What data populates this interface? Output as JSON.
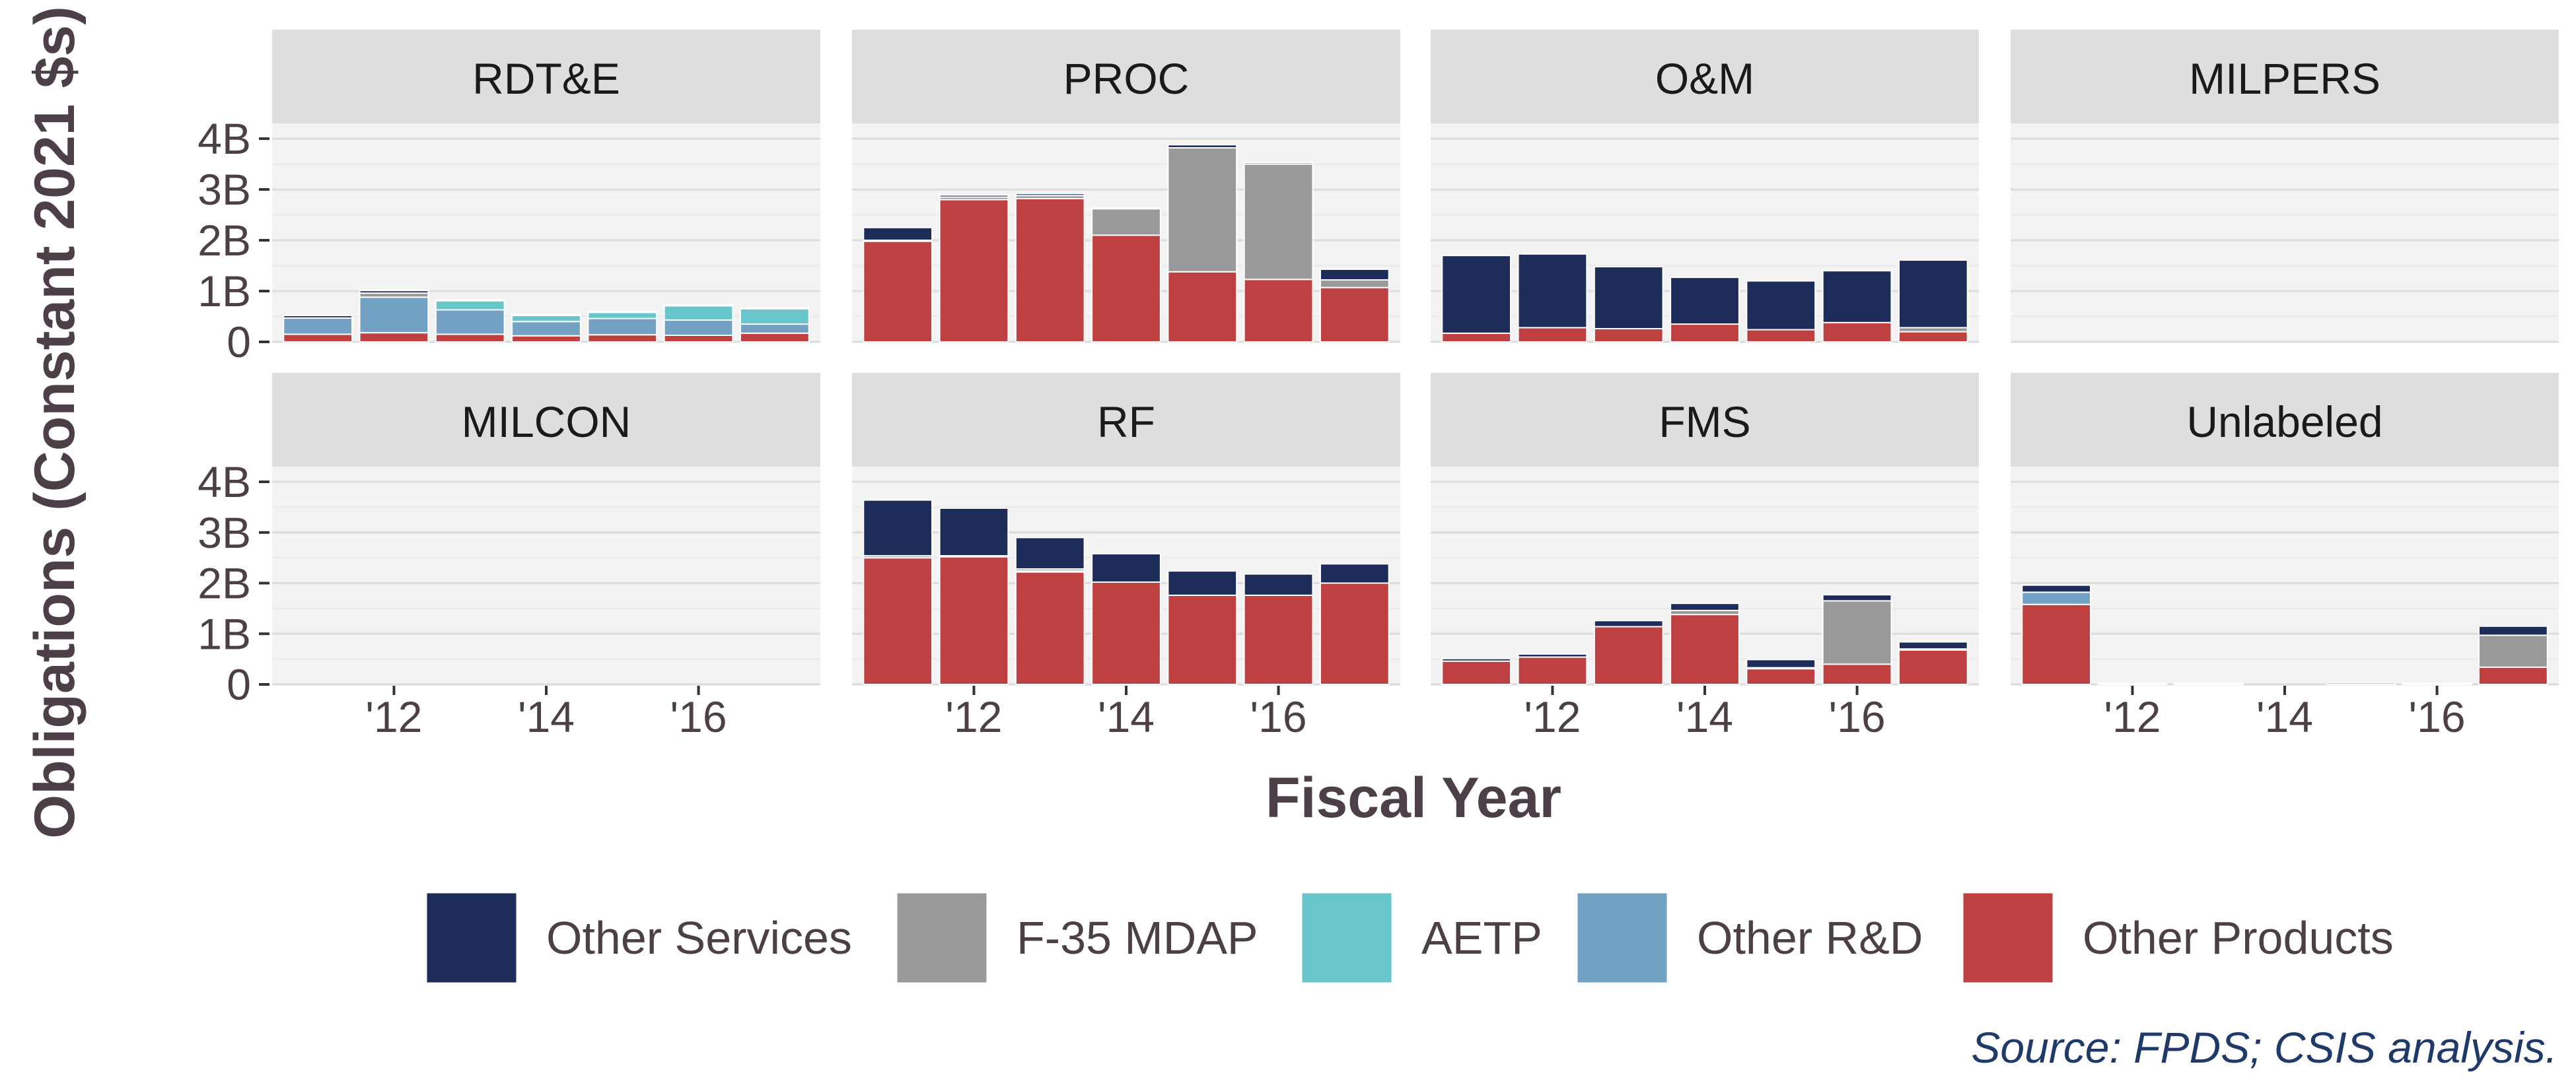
{
  "chart_data": {
    "type": "bar",
    "stacked": true,
    "faceted": true,
    "xlabel": "Fiscal Year",
    "ylabel": "Obligations (Constant 2021 $s)",
    "source": "Source: FPDS; CSIS analysis.",
    "years": [
      2011,
      2012,
      2013,
      2014,
      2015,
      2016,
      2017
    ],
    "xticks": [
      {
        "year": 2012,
        "label": "'12"
      },
      {
        "year": 2014,
        "label": "'14"
      },
      {
        "year": 2016,
        "label": "'16"
      }
    ],
    "yticks": [
      {
        "value": 0,
        "label": "0"
      },
      {
        "value": 1,
        "label": "1B"
      },
      {
        "value": 2,
        "label": "2B"
      },
      {
        "value": 3,
        "label": "3B"
      },
      {
        "value": 4,
        "label": "4B"
      }
    ],
    "ylim": [
      0,
      4.3
    ],
    "y_unit": "billions",
    "grid": true,
    "legend_position": "bottom",
    "series": [
      {
        "key": "other_products",
        "name": "Other Products",
        "color": "#bf4040"
      },
      {
        "key": "other_rd",
        "name": "Other R&D",
        "color": "#72a1c4"
      },
      {
        "key": "aetp",
        "name": "AETP",
        "color": "#66c6cc"
      },
      {
        "key": "f35",
        "name": "F-35 MDAP",
        "color": "#999999"
      },
      {
        "key": "other_services",
        "name": "Other Services",
        "color": "#1e2c5a"
      }
    ],
    "legend_order": [
      "other_services",
      "f35",
      "aetp",
      "other_rd",
      "other_products"
    ],
    "panels": [
      {
        "label": "RDT&E",
        "values": {
          "other_products": [
            0.15,
            0.18,
            0.15,
            0.12,
            0.14,
            0.13,
            0.17
          ],
          "other_rd": [
            0.32,
            0.7,
            0.48,
            0.28,
            0.32,
            0.3,
            0.18
          ],
          "aetp": [
            0.0,
            0.0,
            0.18,
            0.12,
            0.12,
            0.28,
            0.3
          ],
          "f35": [
            0.0,
            0.08,
            0.0,
            0.0,
            0.0,
            0.0,
            0.0
          ],
          "other_services": [
            0.05,
            0.05,
            0.02,
            0.02,
            0.02,
            0.02,
            0.02
          ]
        }
      },
      {
        "label": "PROC",
        "values": {
          "other_products": [
            1.98,
            2.8,
            2.82,
            2.1,
            1.38,
            1.23,
            1.07
          ],
          "other_rd": [
            0.0,
            0.0,
            0.0,
            0.0,
            0.0,
            0.0,
            0.0
          ],
          "aetp": [
            0.0,
            0.0,
            0.0,
            0.0,
            0.0,
            0.0,
            0.0
          ],
          "f35": [
            0.02,
            0.05,
            0.06,
            0.52,
            2.44,
            2.27,
            0.15
          ],
          "other_services": [
            0.25,
            0.04,
            0.04,
            0.02,
            0.06,
            0.03,
            0.21
          ]
        }
      },
      {
        "label": "O&M",
        "values": {
          "other_products": [
            0.17,
            0.28,
            0.26,
            0.35,
            0.24,
            0.38,
            0.2
          ],
          "other_rd": [
            0.0,
            0.0,
            0.0,
            0.0,
            0.0,
            0.0,
            0.0
          ],
          "aetp": [
            0.0,
            0.0,
            0.0,
            0.0,
            0.0,
            0.0,
            0.0
          ],
          "f35": [
            0.0,
            0.0,
            0.0,
            0.0,
            0.0,
            0.0,
            0.08
          ],
          "other_services": [
            1.53,
            1.45,
            1.22,
            0.92,
            0.96,
            1.02,
            1.33
          ]
        }
      },
      {
        "label": "MILPERS",
        "values": {
          "other_products": [
            0,
            0,
            0,
            0,
            0,
            0,
            0
          ],
          "other_rd": [
            0,
            0,
            0,
            0,
            0,
            0,
            0
          ],
          "aetp": [
            0,
            0,
            0,
            0,
            0,
            0,
            0
          ],
          "f35": [
            0,
            0,
            0,
            0,
            0,
            0,
            0
          ],
          "other_services": [
            0,
            0,
            0,
            0,
            0,
            0,
            0
          ]
        }
      },
      {
        "label": "MILCON",
        "values": {
          "other_products": [
            0,
            0,
            0,
            0,
            0,
            0,
            0
          ],
          "other_rd": [
            0,
            0,
            0,
            0,
            0,
            0,
            0
          ],
          "aetp": [
            0,
            0,
            0,
            0,
            0,
            0,
            0
          ],
          "f35": [
            0,
            0,
            0,
            0,
            0,
            0,
            0
          ],
          "other_services": [
            0,
            0,
            0,
            0,
            0,
            0,
            0
          ]
        }
      },
      {
        "label": "RF",
        "values": {
          "other_products": [
            2.5,
            2.52,
            2.22,
            2.02,
            1.76,
            1.76,
            2.0
          ],
          "other_rd": [
            0.04,
            0.02,
            0.02,
            0.0,
            0.0,
            0.0,
            0.0
          ],
          "aetp": [
            0.0,
            0.0,
            0.0,
            0.0,
            0.0,
            0.0,
            0.0
          ],
          "f35": [
            0.0,
            0.0,
            0.04,
            0.0,
            0.0,
            0.0,
            0.0
          ],
          "other_services": [
            1.1,
            0.94,
            0.62,
            0.56,
            0.48,
            0.42,
            0.38
          ]
        }
      },
      {
        "label": "FMS",
        "values": {
          "other_products": [
            0.46,
            0.54,
            1.14,
            1.38,
            0.31,
            0.4,
            0.68
          ],
          "other_rd": [
            0.0,
            0.0,
            0.0,
            0.0,
            0.0,
            0.0,
            0.0
          ],
          "aetp": [
            0.0,
            0.0,
            0.0,
            0.0,
            0.0,
            0.0,
            0.0
          ],
          "f35": [
            0.0,
            0.0,
            0.0,
            0.08,
            0.02,
            1.25,
            0.02
          ],
          "other_services": [
            0.05,
            0.06,
            0.12,
            0.14,
            0.16,
            0.12,
            0.14
          ]
        }
      },
      {
        "label": "Unlabeled",
        "values": {
          "other_products": [
            1.58,
            0.0,
            0.0,
            0.0,
            0.0,
            0.0,
            0.34
          ],
          "other_rd": [
            0.24,
            0.0,
            0.0,
            0.0,
            0.0,
            0.0,
            0.0
          ],
          "aetp": [
            0.0,
            0.0,
            0.0,
            0.0,
            0.0,
            0.0,
            0.0
          ],
          "f35": [
            0.0,
            0.0,
            0.0,
            0.0,
            0.0,
            0.0,
            0.63
          ],
          "other_services": [
            0.14,
            0.02,
            0.02,
            0.0,
            0.03,
            0.02,
            0.18
          ]
        }
      }
    ]
  }
}
